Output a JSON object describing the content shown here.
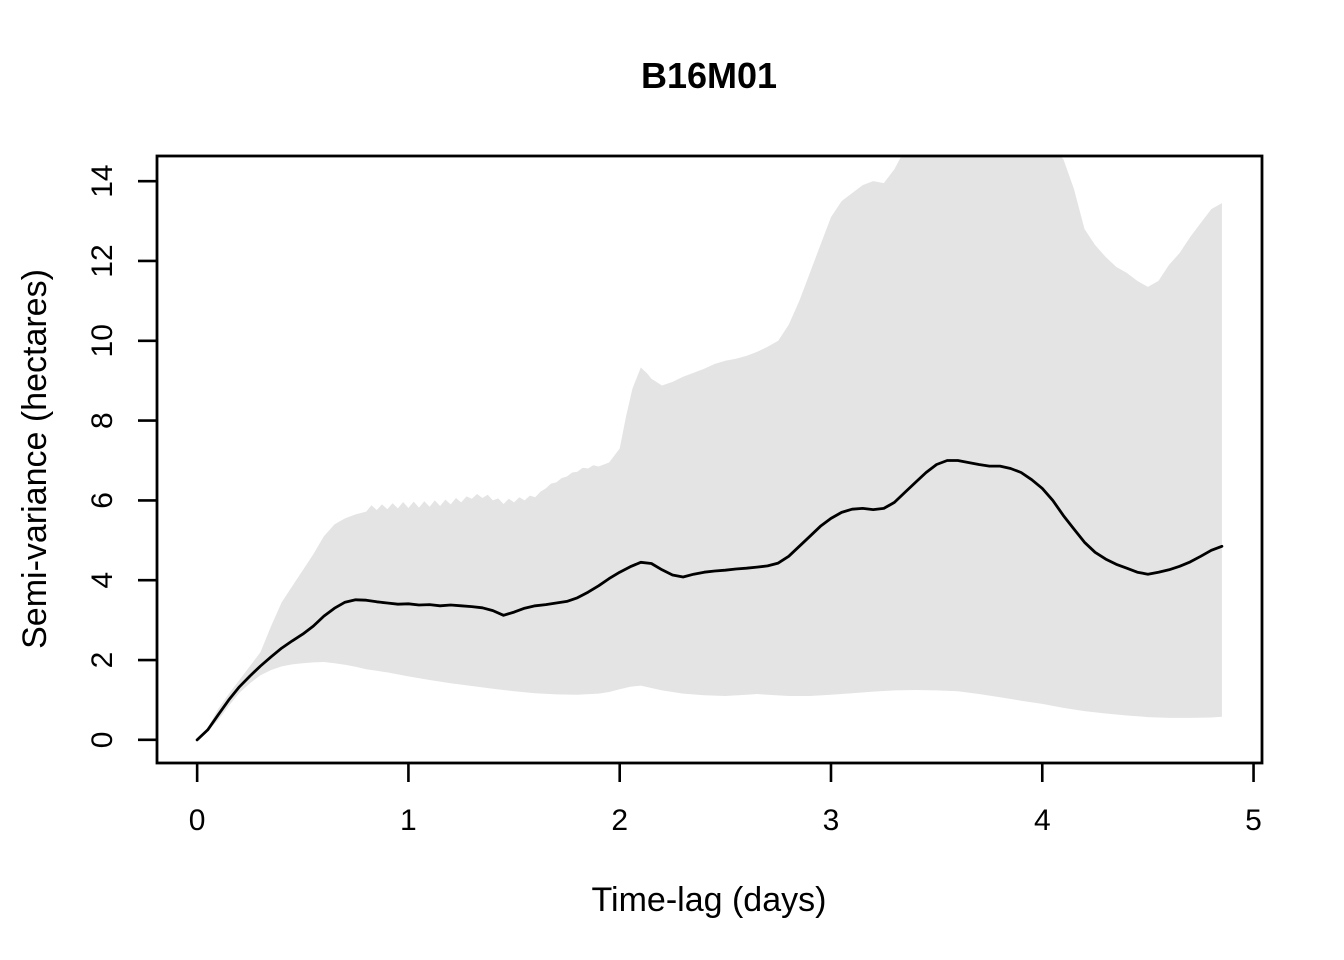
{
  "chart_data": {
    "type": "line",
    "title": "B16M01",
    "xlabel": "Time-lag (days)",
    "ylabel": "Semi-variance (hectares)",
    "xlim": [
      -0.19,
      5.04
    ],
    "ylim": [
      -0.58,
      14.63
    ],
    "xticks": [
      0,
      1,
      2,
      3,
      4,
      5
    ],
    "yticks": [
      0,
      2,
      4,
      6,
      8,
      10,
      12,
      14
    ],
    "grid": false,
    "legend": false,
    "background_color": "#ffffff",
    "band_color": "#e4e4e4",
    "line_color": "#000000",
    "series": [
      {
        "name": "semivariance_estimate",
        "points": [
          [
            0,
            0
          ],
          [
            0.05,
            0.25
          ],
          [
            0.1,
            0.63
          ],
          [
            0.15,
            1.0
          ],
          [
            0.2,
            1.33
          ],
          [
            0.25,
            1.6
          ],
          [
            0.3,
            1.85
          ],
          [
            0.35,
            2.08
          ],
          [
            0.4,
            2.3
          ],
          [
            0.45,
            2.48
          ],
          [
            0.5,
            2.65
          ],
          [
            0.55,
            2.85
          ],
          [
            0.6,
            3.1
          ],
          [
            0.65,
            3.3
          ],
          [
            0.7,
            3.45
          ],
          [
            0.75,
            3.51
          ],
          [
            0.8,
            3.5
          ],
          [
            0.85,
            3.46
          ],
          [
            0.9,
            3.43
          ],
          [
            0.95,
            3.4
          ],
          [
            1,
            3.41
          ],
          [
            1.05,
            3.38
          ],
          [
            1.1,
            3.39
          ],
          [
            1.15,
            3.36
          ],
          [
            1.2,
            3.38
          ],
          [
            1.25,
            3.36
          ],
          [
            1.3,
            3.34
          ],
          [
            1.35,
            3.31
          ],
          [
            1.4,
            3.24
          ],
          [
            1.45,
            3.12
          ],
          [
            1.5,
            3.2
          ],
          [
            1.55,
            3.3
          ],
          [
            1.6,
            3.36
          ],
          [
            1.65,
            3.39
          ],
          [
            1.7,
            3.43
          ],
          [
            1.75,
            3.47
          ],
          [
            1.8,
            3.56
          ],
          [
            1.85,
            3.7
          ],
          [
            1.9,
            3.86
          ],
          [
            1.95,
            4.04
          ],
          [
            2,
            4.2
          ],
          [
            2.05,
            4.34
          ],
          [
            2.1,
            4.45
          ],
          [
            2.15,
            4.42
          ],
          [
            2.2,
            4.26
          ],
          [
            2.25,
            4.13
          ],
          [
            2.3,
            4.08
          ],
          [
            2.35,
            4.15
          ],
          [
            2.4,
            4.2
          ],
          [
            2.45,
            4.23
          ],
          [
            2.5,
            4.25
          ],
          [
            2.55,
            4.28
          ],
          [
            2.6,
            4.3
          ],
          [
            2.65,
            4.33
          ],
          [
            2.7,
            4.36
          ],
          [
            2.75,
            4.43
          ],
          [
            2.8,
            4.6
          ],
          [
            2.85,
            4.85
          ],
          [
            2.9,
            5.1
          ],
          [
            2.95,
            5.35
          ],
          [
            3,
            5.55
          ],
          [
            3.05,
            5.7
          ],
          [
            3.1,
            5.78
          ],
          [
            3.15,
            5.8
          ],
          [
            3.2,
            5.77
          ],
          [
            3.25,
            5.8
          ],
          [
            3.3,
            5.95
          ],
          [
            3.35,
            6.2
          ],
          [
            3.4,
            6.45
          ],
          [
            3.45,
            6.7
          ],
          [
            3.5,
            6.9
          ],
          [
            3.55,
            7.0
          ],
          [
            3.6,
            7.0
          ],
          [
            3.65,
            6.95
          ],
          [
            3.7,
            6.9
          ],
          [
            3.75,
            6.86
          ],
          [
            3.8,
            6.86
          ],
          [
            3.85,
            6.8
          ],
          [
            3.9,
            6.7
          ],
          [
            3.95,
            6.52
          ],
          [
            4,
            6.3
          ],
          [
            4.05,
            6.0
          ],
          [
            4.1,
            5.62
          ],
          [
            4.15,
            5.28
          ],
          [
            4.2,
            4.95
          ],
          [
            4.25,
            4.7
          ],
          [
            4.3,
            4.53
          ],
          [
            4.35,
            4.4
          ],
          [
            4.4,
            4.3
          ],
          [
            4.45,
            4.2
          ],
          [
            4.5,
            4.15
          ],
          [
            4.55,
            4.2
          ],
          [
            4.6,
            4.26
          ],
          [
            4.65,
            4.35
          ],
          [
            4.7,
            4.46
          ],
          [
            4.75,
            4.6
          ],
          [
            4.8,
            4.75
          ],
          [
            4.85,
            4.85
          ]
        ]
      },
      {
        "name": "ci_upper_95",
        "points": [
          [
            0,
            0
          ],
          [
            0.05,
            0.3
          ],
          [
            0.1,
            0.78
          ],
          [
            0.15,
            1.15
          ],
          [
            0.2,
            1.5
          ],
          [
            0.25,
            1.85
          ],
          [
            0.3,
            2.2
          ],
          [
            0.35,
            2.85
          ],
          [
            0.4,
            3.45
          ],
          [
            0.45,
            3.85
          ],
          [
            0.5,
            4.25
          ],
          [
            0.55,
            4.65
          ],
          [
            0.6,
            5.1
          ],
          [
            0.65,
            5.4
          ],
          [
            0.7,
            5.55
          ],
          [
            0.75,
            5.65
          ],
          [
            0.8,
            5.72
          ],
          [
            0.825,
            5.88
          ],
          [
            0.85,
            5.76
          ],
          [
            0.875,
            5.9
          ],
          [
            0.9,
            5.78
          ],
          [
            0.925,
            5.93
          ],
          [
            0.95,
            5.8
          ],
          [
            0.975,
            5.96
          ],
          [
            1,
            5.81
          ],
          [
            1.025,
            5.97
          ],
          [
            1.05,
            5.82
          ],
          [
            1.075,
            5.98
          ],
          [
            1.1,
            5.84
          ],
          [
            1.125,
            6.0
          ],
          [
            1.15,
            5.86
          ],
          [
            1.175,
            6.02
          ],
          [
            1.2,
            5.9
          ],
          [
            1.225,
            6.06
          ],
          [
            1.25,
            5.95
          ],
          [
            1.275,
            6.1
          ],
          [
            1.3,
            6.04
          ],
          [
            1.325,
            6.16
          ],
          [
            1.35,
            6.06
          ],
          [
            1.375,
            6.14
          ],
          [
            1.4,
            6.0
          ],
          [
            1.425,
            6.05
          ],
          [
            1.45,
            5.91
          ],
          [
            1.475,
            6.04
          ],
          [
            1.5,
            5.95
          ],
          [
            1.525,
            6.08
          ],
          [
            1.55,
            6.0
          ],
          [
            1.575,
            6.12
          ],
          [
            1.6,
            6.08
          ],
          [
            1.625,
            6.22
          ],
          [
            1.65,
            6.3
          ],
          [
            1.675,
            6.42
          ],
          [
            1.7,
            6.45
          ],
          [
            1.725,
            6.56
          ],
          [
            1.75,
            6.6
          ],
          [
            1.775,
            6.7
          ],
          [
            1.8,
            6.72
          ],
          [
            1.825,
            6.82
          ],
          [
            1.85,
            6.8
          ],
          [
            1.875,
            6.88
          ],
          [
            1.9,
            6.85
          ],
          [
            1.95,
            6.95
          ],
          [
            2,
            7.3
          ],
          [
            2.03,
            8.1
          ],
          [
            2.06,
            8.8
          ],
          [
            2.1,
            9.33
          ],
          [
            2.13,
            9.18
          ],
          [
            2.15,
            9.05
          ],
          [
            2.2,
            8.88
          ],
          [
            2.25,
            8.97
          ],
          [
            2.3,
            9.1
          ],
          [
            2.35,
            9.2
          ],
          [
            2.4,
            9.3
          ],
          [
            2.45,
            9.42
          ],
          [
            2.5,
            9.5
          ],
          [
            2.55,
            9.55
          ],
          [
            2.6,
            9.62
          ],
          [
            2.65,
            9.72
          ],
          [
            2.7,
            9.85
          ],
          [
            2.75,
            10.0
          ],
          [
            2.8,
            10.4
          ],
          [
            2.85,
            11.0
          ],
          [
            2.9,
            11.7
          ],
          [
            2.95,
            12.4
          ],
          [
            3,
            13.1
          ],
          [
            3.05,
            13.5
          ],
          [
            3.1,
            13.7
          ],
          [
            3.15,
            13.9
          ],
          [
            3.2,
            14.0
          ],
          [
            3.25,
            13.95
          ],
          [
            3.3,
            14.3
          ],
          [
            3.35,
            14.8
          ],
          [
            3.4,
            15.2
          ],
          [
            3.5,
            15.7
          ],
          [
            3.6,
            15.9
          ],
          [
            3.7,
            15.9
          ],
          [
            3.8,
            15.7
          ],
          [
            3.9,
            15.4
          ],
          [
            4,
            15.0
          ],
          [
            4.05,
            14.8
          ],
          [
            4.1,
            14.55
          ],
          [
            4.15,
            13.8
          ],
          [
            4.2,
            12.8
          ],
          [
            4.25,
            12.4
          ],
          [
            4.3,
            12.1
          ],
          [
            4.35,
            11.85
          ],
          [
            4.4,
            11.7
          ],
          [
            4.45,
            11.5
          ],
          [
            4.5,
            11.35
          ],
          [
            4.55,
            11.5
          ],
          [
            4.6,
            11.9
          ],
          [
            4.65,
            12.2
          ],
          [
            4.7,
            12.6
          ],
          [
            4.75,
            12.95
          ],
          [
            4.8,
            13.3
          ],
          [
            4.85,
            13.45
          ]
        ]
      },
      {
        "name": "ci_lower_95",
        "points": [
          [
            0,
            0
          ],
          [
            0.05,
            0.22
          ],
          [
            0.1,
            0.5
          ],
          [
            0.15,
            0.85
          ],
          [
            0.2,
            1.18
          ],
          [
            0.25,
            1.42
          ],
          [
            0.3,
            1.62
          ],
          [
            0.35,
            1.75
          ],
          [
            0.4,
            1.84
          ],
          [
            0.45,
            1.89
          ],
          [
            0.5,
            1.92
          ],
          [
            0.55,
            1.94
          ],
          [
            0.6,
            1.95
          ],
          [
            0.63,
            1.93
          ],
          [
            0.65,
            1.92
          ],
          [
            0.7,
            1.88
          ],
          [
            0.75,
            1.83
          ],
          [
            0.8,
            1.77
          ],
          [
            0.85,
            1.73
          ],
          [
            0.9,
            1.69
          ],
          [
            0.95,
            1.64
          ],
          [
            1,
            1.59
          ],
          [
            1.1,
            1.5
          ],
          [
            1.2,
            1.42
          ],
          [
            1.3,
            1.35
          ],
          [
            1.4,
            1.28
          ],
          [
            1.5,
            1.22
          ],
          [
            1.6,
            1.17
          ],
          [
            1.7,
            1.14
          ],
          [
            1.8,
            1.13
          ],
          [
            1.9,
            1.16
          ],
          [
            1.95,
            1.2
          ],
          [
            2,
            1.27
          ],
          [
            2.05,
            1.33
          ],
          [
            2.1,
            1.36
          ],
          [
            2.15,
            1.3
          ],
          [
            2.2,
            1.24
          ],
          [
            2.3,
            1.16
          ],
          [
            2.4,
            1.12
          ],
          [
            2.5,
            1.1
          ],
          [
            2.6,
            1.13
          ],
          [
            2.65,
            1.15
          ],
          [
            2.7,
            1.13
          ],
          [
            2.8,
            1.1
          ],
          [
            2.9,
            1.1
          ],
          [
            3,
            1.13
          ],
          [
            3.1,
            1.17
          ],
          [
            3.2,
            1.21
          ],
          [
            3.3,
            1.24
          ],
          [
            3.4,
            1.25
          ],
          [
            3.5,
            1.24
          ],
          [
            3.6,
            1.22
          ],
          [
            3.7,
            1.15
          ],
          [
            3.8,
            1.07
          ],
          [
            3.9,
            0.98
          ],
          [
            4,
            0.9
          ],
          [
            4.1,
            0.8
          ],
          [
            4.2,
            0.72
          ],
          [
            4.3,
            0.66
          ],
          [
            4.4,
            0.61
          ],
          [
            4.5,
            0.57
          ],
          [
            4.6,
            0.55
          ],
          [
            4.7,
            0.55
          ],
          [
            4.8,
            0.56
          ],
          [
            4.85,
            0.58
          ]
        ]
      }
    ]
  }
}
